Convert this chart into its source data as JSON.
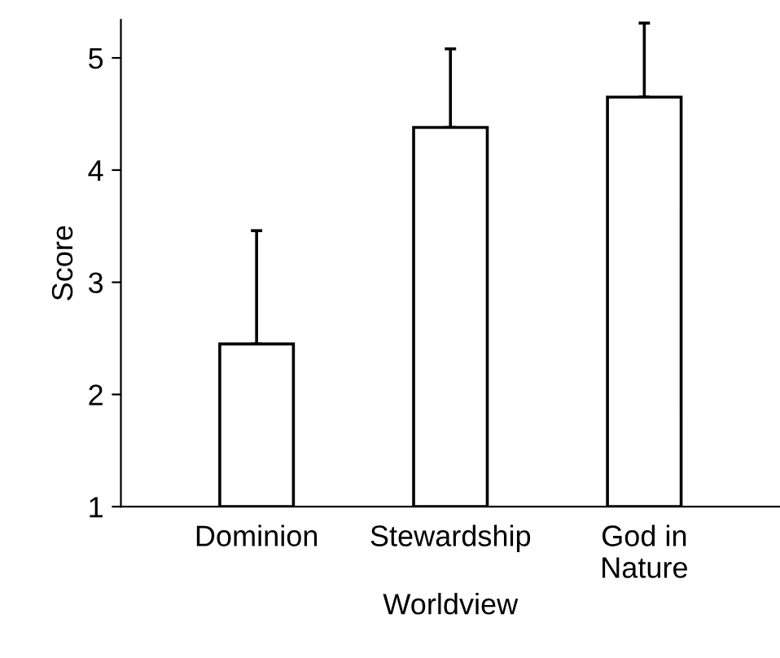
{
  "chart_data": {
    "type": "bar",
    "xlabel": "Worldview",
    "ylabel": "Score",
    "categories": [
      "Dominion",
      "Stewardship",
      "God in\nNature"
    ],
    "values": [
      2.45,
      4.38,
      4.65
    ],
    "errors": [
      [
        2.45,
        3.46
      ],
      [
        4.38,
        5.08
      ],
      [
        4.65,
        5.31
      ]
    ],
    "color": "#ffffff",
    "ylim": [
      1,
      5.34
    ],
    "yticks": [
      1,
      2,
      3,
      4,
      5
    ],
    "grid": false,
    "legend": false
  }
}
